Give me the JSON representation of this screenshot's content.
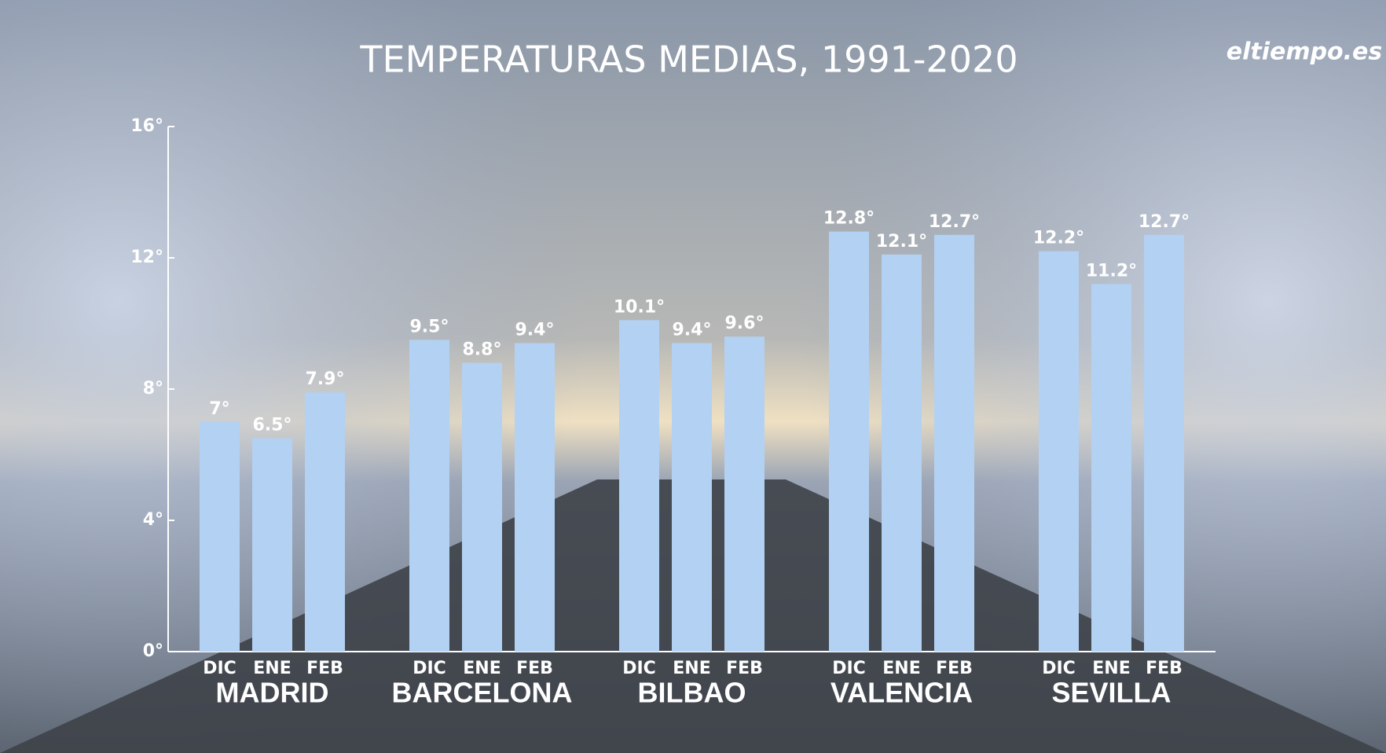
{
  "chart_data": {
    "type": "bar",
    "title": "TEMPERATURAS MEDIAS, 1991-2020",
    "logo": "eltiempo.es",
    "color": "#b3d1f2",
    "groups": [
      {
        "name": "MADRID",
        "categories": [
          "DIC",
          "ENE",
          "FEB"
        ],
        "values": [
          7,
          6.5,
          7.9
        ],
        "value_labels": [
          "7°",
          "6.5°",
          "7.9°"
        ]
      },
      {
        "name": "BARCELONA",
        "categories": [
          "DIC",
          "ENE",
          "FEB"
        ],
        "values": [
          9.5,
          8.8,
          9.4
        ],
        "value_labels": [
          "9.5°",
          "8.8°",
          "9.4°"
        ]
      },
      {
        "name": "BILBAO",
        "categories": [
          "DIC",
          "ENE",
          "FEB"
        ],
        "values": [
          10.1,
          9.4,
          9.6
        ],
        "value_labels": [
          "10.1°",
          "9.4°",
          "9.6°"
        ]
      },
      {
        "name": "VALENCIA",
        "categories": [
          "DIC",
          "ENE",
          "FEB"
        ],
        "values": [
          12.8,
          12.1,
          12.7
        ],
        "value_labels": [
          "12.8°",
          "12.1°",
          "12.7°"
        ]
      },
      {
        "name": "SEVILLA",
        "categories": [
          "DIC",
          "ENE",
          "FEB"
        ],
        "values": [
          12.2,
          11.2,
          12.7
        ],
        "value_labels": [
          "12.2°",
          "11.2°",
          "12.7°"
        ]
      }
    ],
    "ylim": [
      0,
      16
    ],
    "yticks": [
      {
        "value": 0,
        "label": "0°"
      },
      {
        "value": 4,
        "label": "4°"
      },
      {
        "value": 8,
        "label": "8°"
      },
      {
        "value": 12,
        "label": "12°"
      },
      {
        "value": 16,
        "label": "16°"
      }
    ]
  }
}
